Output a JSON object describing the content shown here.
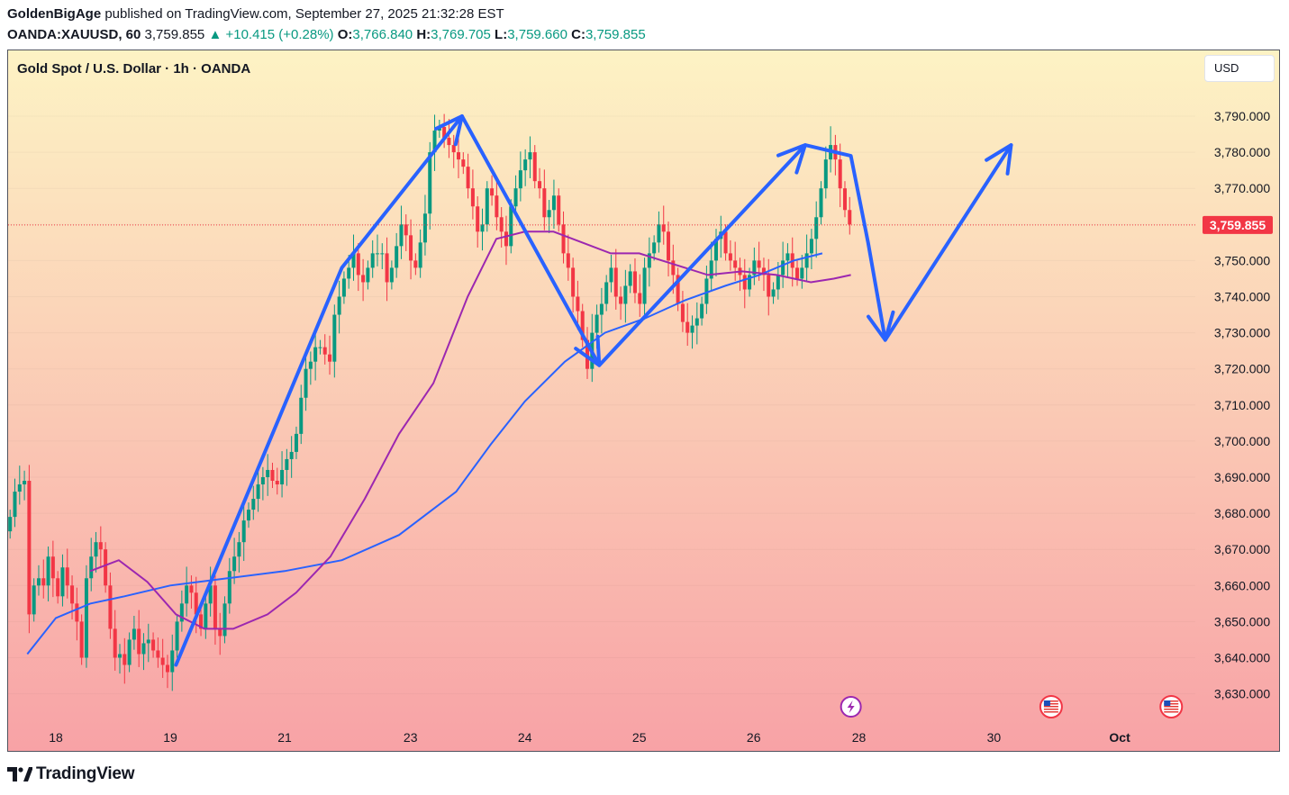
{
  "header": {
    "author": "GoldenBigAge",
    "published_text": "published on TradingView.com, September 27, 2025 21:32:28 EST",
    "symbol": "OANDA:XAUUSD, 60",
    "last": "3,759.855",
    "change": "+10.415 (+0.28%)",
    "o_label": "O:",
    "o_value": "3,766.840",
    "h_label": "H:",
    "h_value": "3,769.705",
    "l_label": "L:",
    "l_value": "3,759.660",
    "c_label": "C:",
    "c_value": "3,759.855"
  },
  "chart_title": "Gold Spot / U.S. Dollar · 1h · OANDA",
  "currency_button": "USD",
  "brand": "TradingView",
  "colors": {
    "up": "#089981",
    "down": "#f23645",
    "ma_fast": "#9c27b0",
    "ma_slow": "#2962ff",
    "drawing": "#2962ff",
    "bg_top": "#fdf3c4",
    "bg_bottom": "#f8a2a6"
  },
  "chart_data": {
    "type": "candlestick",
    "title": "Gold Spot / U.S. Dollar · 1h · OANDA",
    "currency": "USD",
    "y_range": [
      3620,
      3800
    ],
    "y_ticks": [
      "3,790.000",
      "3,780.000",
      "3,770.000",
      "3,760.000",
      "3,750.000",
      "3,740.000",
      "3,730.000",
      "3,720.000",
      "3,710.000",
      "3,700.000",
      "3,690.000",
      "3,680.000",
      "3,670.000",
      "3,660.000",
      "3,650.000",
      "3,640.000",
      "3,630.000"
    ],
    "y_tick_values": [
      3790,
      3780,
      3770,
      3760,
      3750,
      3740,
      3730,
      3720,
      3710,
      3700,
      3690,
      3680,
      3670,
      3660,
      3650,
      3640,
      3630
    ],
    "x_range_days": [
      17.6,
      31.65
    ],
    "x_ticks": [
      {
        "label": "18",
        "day": 18
      },
      {
        "label": "19",
        "day": 19
      },
      {
        "label": "21",
        "day": 20
      },
      {
        "label": "23",
        "day": 21.1
      },
      {
        "label": "24",
        "day": 22.1
      },
      {
        "label": "25",
        "day": 23.1
      },
      {
        "label": "26",
        "day": 24.1
      },
      {
        "label": "28",
        "day": 25.02
      },
      {
        "label": "30",
        "day": 26.2
      },
      {
        "label": "Oct",
        "day": 27.3
      }
    ],
    "last_price": 3759.855,
    "last_price_label": "3,759.855",
    "candle_start_day": 17.6,
    "candle_step_day": 0.0417,
    "closes": [
      3679,
      3686,
      3688,
      3689,
      3652,
      3660,
      3662,
      3660,
      3668,
      3662,
      3657,
      3665,
      3660,
      3655,
      3650,
      3640,
      3662,
      3668,
      3672,
      3670,
      3660,
      3648,
      3640,
      3641,
      3638,
      3645,
      3648,
      3641,
      3644,
      3645,
      3642,
      3640,
      3638,
      3636,
      3642,
      3650,
      3655,
      3660,
      3658,
      3652,
      3648,
      3655,
      3660,
      3648,
      3646,
      3655,
      3664,
      3668,
      3672,
      3678,
      3681,
      3684,
      3688,
      3690,
      3692,
      3689,
      3688,
      3692,
      3695,
      3697,
      3702,
      3712,
      3720,
      3722,
      3726,
      3726,
      3724,
      3722,
      3735,
      3740,
      3745,
      3748,
      3752,
      3746,
      3744,
      3748,
      3752,
      3752,
      3752,
      3744,
      3748,
      3754,
      3760,
      3757,
      3750,
      3748,
      3755,
      3763,
      3780,
      3786,
      3787,
      3784,
      3782,
      3780,
      3778,
      3776,
      3770,
      3765,
      3758,
      3760,
      3770,
      3768,
      3762,
      3758,
      3754,
      3765,
      3770,
      3775,
      3778,
      3780,
      3772,
      3770,
      3762,
      3764,
      3768,
      3760,
      3752,
      3748,
      3740,
      3736,
      3728,
      3720,
      3730,
      3735,
      3738,
      3744,
      3748,
      3740,
      3738,
      3743,
      3747,
      3741,
      3738,
      3748,
      3752,
      3755,
      3760,
      3758,
      3750,
      3746,
      3738,
      3733,
      3730,
      3732,
      3734,
      3738,
      3745,
      3750,
      3756,
      3758,
      3752,
      3750,
      3748,
      3746,
      3742,
      3746,
      3750,
      3748,
      3746,
      3740,
      3742,
      3746,
      3750,
      3752,
      3748,
      3745,
      3748,
      3752,
      3756,
      3762,
      3770,
      3778,
      3782,
      3778,
      3770,
      3764,
      3760
    ],
    "ma_fast_points": [
      [
        18.3,
        3664
      ],
      [
        18.55,
        3667
      ],
      [
        18.8,
        3661
      ],
      [
        19.05,
        3652
      ],
      [
        19.3,
        3648
      ],
      [
        19.55,
        3648
      ],
      [
        19.85,
        3652
      ],
      [
        20.1,
        3658
      ],
      [
        20.4,
        3668
      ],
      [
        20.7,
        3684
      ],
      [
        21.0,
        3702
      ],
      [
        21.3,
        3716
      ],
      [
        21.6,
        3740
      ],
      [
        21.85,
        3756
      ],
      [
        22.1,
        3758
      ],
      [
        22.35,
        3758
      ],
      [
        22.6,
        3755
      ],
      [
        22.85,
        3752
      ],
      [
        23.1,
        3752
      ],
      [
        23.4,
        3749
      ],
      [
        23.7,
        3746
      ],
      [
        24.0,
        3747
      ],
      [
        24.3,
        3746
      ],
      [
        24.6,
        3744
      ],
      [
        24.8,
        3745
      ],
      [
        24.95,
        3746
      ]
    ],
    "ma_slow_points": [
      [
        17.75,
        3641
      ],
      [
        18.0,
        3651
      ],
      [
        18.3,
        3655
      ],
      [
        18.6,
        3657
      ],
      [
        19.0,
        3660
      ],
      [
        19.5,
        3662
      ],
      [
        20.0,
        3664
      ],
      [
        20.5,
        3667
      ],
      [
        21.0,
        3674
      ],
      [
        21.5,
        3686
      ],
      [
        21.8,
        3699
      ],
      [
        22.1,
        3711
      ],
      [
        22.45,
        3722
      ],
      [
        22.8,
        3730
      ],
      [
        23.15,
        3734
      ],
      [
        23.5,
        3739
      ],
      [
        23.85,
        3743
      ],
      [
        24.15,
        3746
      ],
      [
        24.45,
        3750
      ],
      [
        24.7,
        3752
      ]
    ],
    "annotations": {
      "drawn_path": [
        [
          19.05,
          3638
        ],
        [
          20.5,
          3748
        ],
        [
          21.55,
          3790
        ],
        [
          22.75,
          3721
        ],
        [
          24.55,
          3782
        ],
        [
          24.95,
          3779
        ],
        [
          25.1,
          3755
        ],
        [
          25.25,
          3728
        ],
        [
          26.35,
          3782
        ]
      ],
      "arrowhead_points": [
        [
          21.55,
          3790
        ],
        [
          22.75,
          3721
        ],
        [
          24.55,
          3782
        ],
        [
          25.25,
          3728
        ],
        [
          26.35,
          3782
        ]
      ],
      "event_icons": [
        {
          "name": "lightning-event-icon",
          "day": 24.95
        },
        {
          "name": "us-flag-event-icon",
          "day": 26.7
        },
        {
          "name": "us-flag-event-icon",
          "day": 27.75
        }
      ]
    }
  }
}
